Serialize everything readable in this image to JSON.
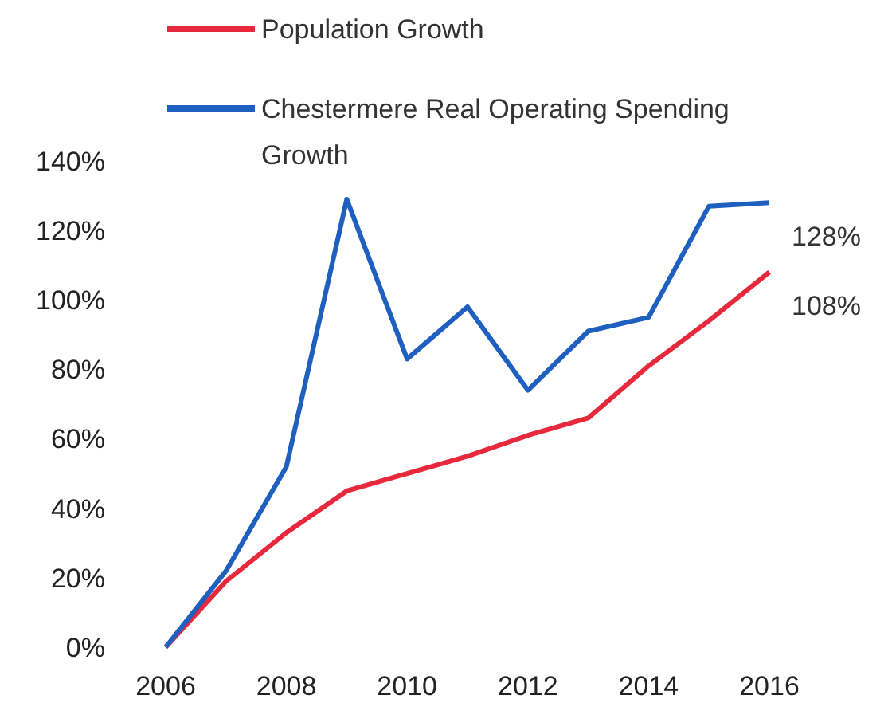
{
  "chart_data": {
    "type": "line",
    "x": [
      2006,
      2007,
      2008,
      2009,
      2010,
      2011,
      2012,
      2013,
      2014,
      2015,
      2016
    ],
    "series": [
      {
        "name": "Population Growth",
        "color": "#e8283c",
        "values": [
          0,
          19,
          33,
          45,
          50,
          55,
          61,
          66,
          81,
          94,
          108
        ]
      },
      {
        "name": "Chestermere Real Operating Spending Growth",
        "color": "#1f5fbf",
        "values": [
          0,
          22,
          52,
          129,
          83,
          98,
          74,
          91,
          95,
          127,
          128
        ]
      }
    ],
    "xlim": [
      2006,
      2016
    ],
    "xticks": [
      2006,
      2008,
      2010,
      2012,
      2014,
      2016
    ],
    "ylim": [
      0,
      140
    ],
    "yticks": [
      {
        "value": 0,
        "label": "0%"
      },
      {
        "value": 20,
        "label": "20%"
      },
      {
        "value": 40,
        "label": "40%"
      },
      {
        "value": 60,
        "label": "60%"
      },
      {
        "value": 80,
        "label": "80%"
      },
      {
        "value": 100,
        "label": "100%"
      },
      {
        "value": 120,
        "label": "120%"
      },
      {
        "value": 140,
        "label": "140%"
      }
    ],
    "annotations": [
      {
        "text": "128%",
        "x": 2016,
        "y": 128
      },
      {
        "text": "108%",
        "x": 2016,
        "y": 108
      }
    ],
    "legend": "top",
    "grid": false,
    "marker": "none",
    "line_style": "solid"
  }
}
